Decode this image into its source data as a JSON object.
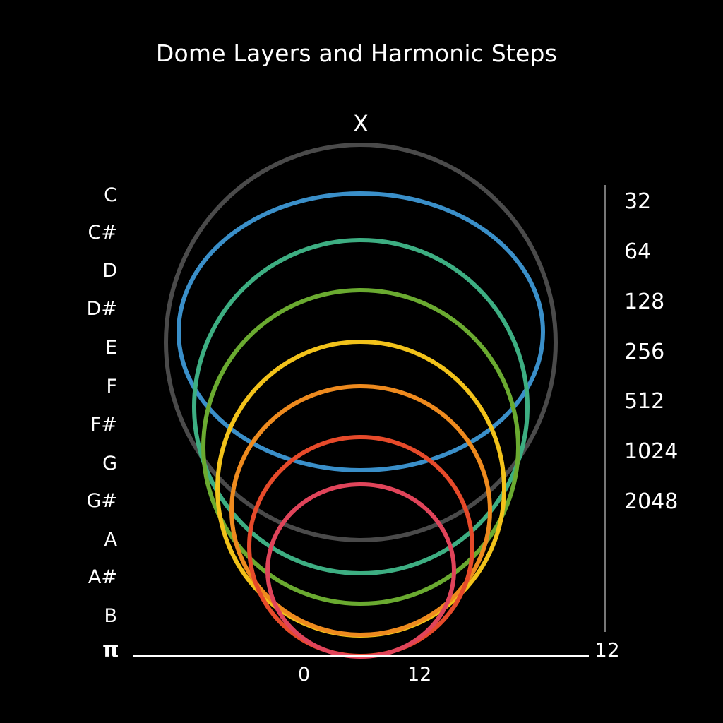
{
  "title": "Dome Layers and Harmonic Steps",
  "apex_label": "X",
  "notes": [
    "C",
    "C#",
    "D",
    "D#",
    "E",
    "F",
    "F#",
    "G",
    "G#",
    "A",
    "A#",
    "B"
  ],
  "baseline_symbol": "π",
  "steps": [
    "32",
    "64",
    "128",
    "256",
    "512",
    "1024",
    "2048"
  ],
  "axis_end_label": "12",
  "x_ticks": [
    "0",
    "12"
  ],
  "rings": [
    {
      "name": "ring-gray",
      "color": "#4a4a4a"
    },
    {
      "name": "ring-blue",
      "color": "#3a8fc9"
    },
    {
      "name": "ring-teal",
      "color": "#3dae82"
    },
    {
      "name": "ring-lime",
      "color": "#6aaa30"
    },
    {
      "name": "ring-yellow",
      "color": "#f2c21a"
    },
    {
      "name": "ring-orange",
      "color": "#ee8a1e"
    },
    {
      "name": "ring-red",
      "color": "#e64a2a"
    },
    {
      "name": "ring-pink",
      "color": "#e0445a"
    }
  ],
  "baseline_color": "#ffffff",
  "scale_line_color": "#777777"
}
